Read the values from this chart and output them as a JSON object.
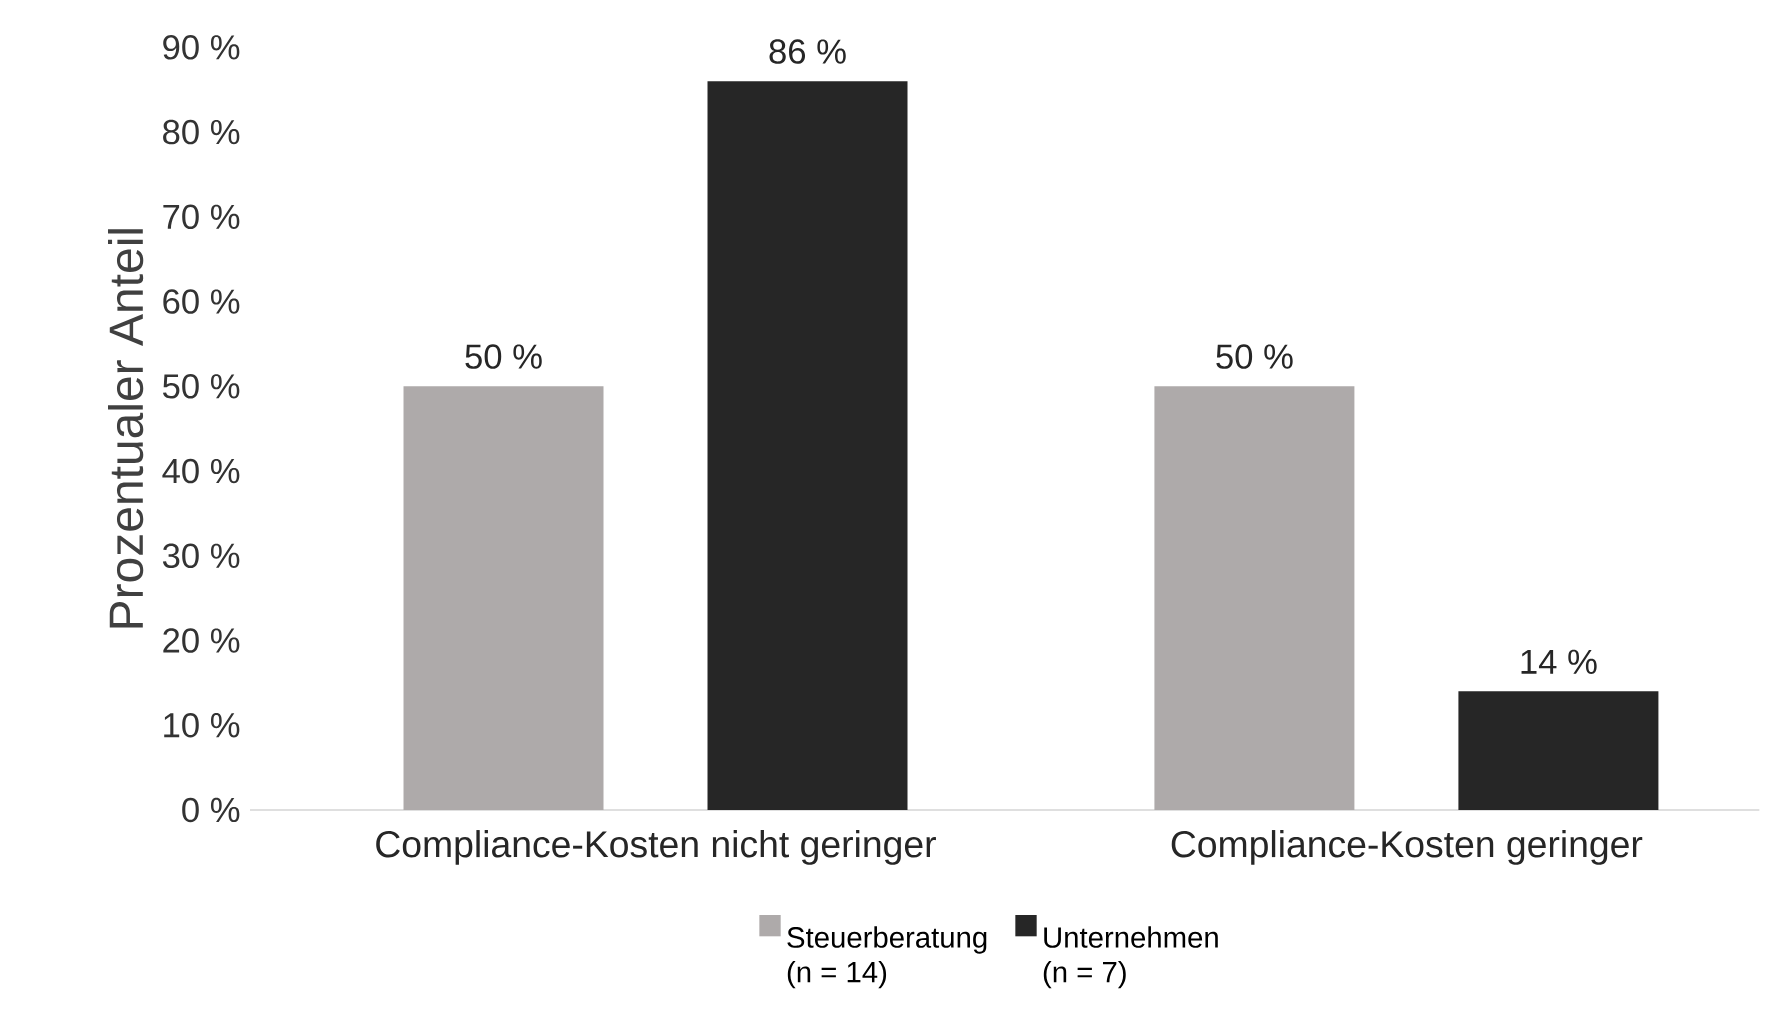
{
  "chart_data": {
    "type": "bar",
    "ylabel": "Prozentualer Anteil",
    "categories": [
      "Compliance-Kosten nicht geringer",
      "Compliance-Kosten geringer"
    ],
    "series": [
      {
        "name": "Steuerberatung (n = 14)",
        "color": "#aeaaaa",
        "values": [
          50,
          50
        ],
        "value_labels": [
          "50 %",
          "50 %"
        ]
      },
      {
        "name": "Unternehmen (n = 7)",
        "color": "#262626",
        "values": [
          86,
          14
        ],
        "value_labels": [
          "86 %",
          "14 %"
        ]
      }
    ],
    "ylim": [
      0,
      90
    ],
    "yticks": [
      {
        "value": 0,
        "label": "0 %"
      },
      {
        "value": 10,
        "label": "10 %"
      },
      {
        "value": 20,
        "label": "20 %"
      },
      {
        "value": 30,
        "label": "30 %"
      },
      {
        "value": 40,
        "label": "40 %"
      },
      {
        "value": 50,
        "label": "50 %"
      },
      {
        "value": 60,
        "label": "60 %"
      },
      {
        "value": 70,
        "label": "70 %"
      },
      {
        "value": 80,
        "label": "80 %"
      },
      {
        "value": 90,
        "label": "90 %"
      }
    ],
    "legend": "bottom"
  }
}
